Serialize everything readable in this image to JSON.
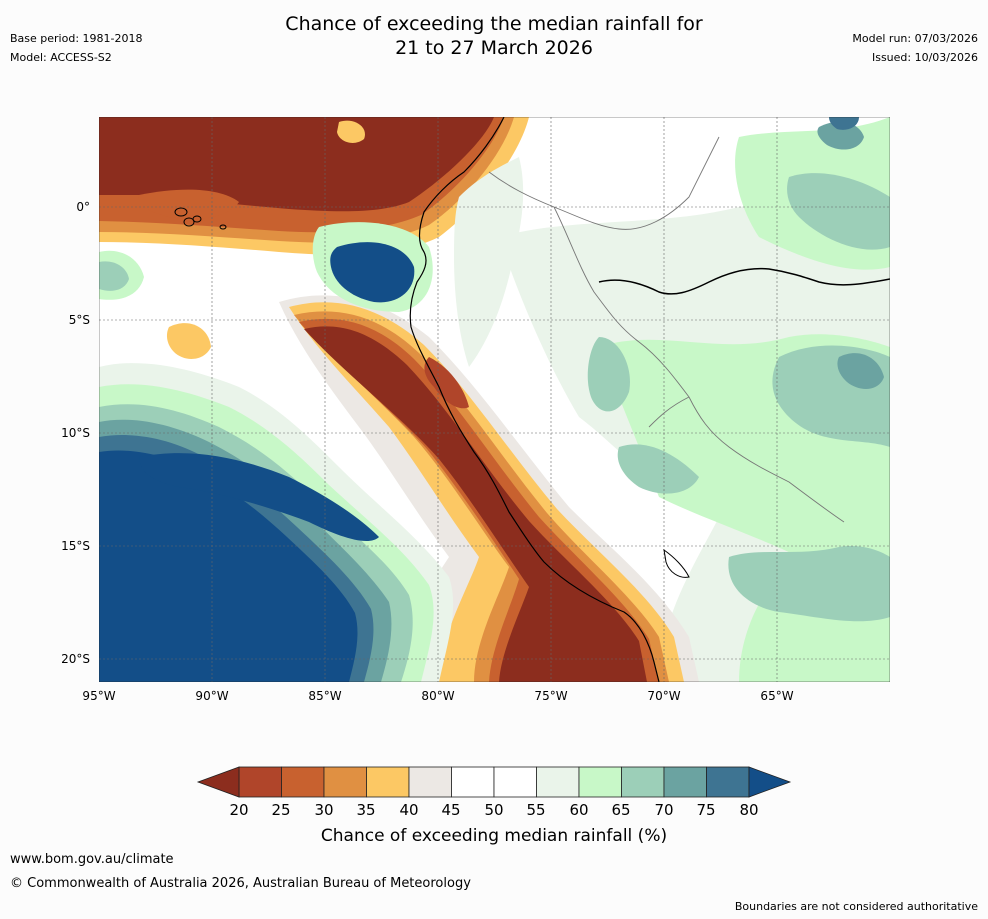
{
  "header": {
    "title_line1": "Chance of exceeding the median rainfall for",
    "title_line2": "21 to 27 March 2026",
    "base_period": "Base period: 1981-2018",
    "model": "Model: ACCESS-S2",
    "model_run": "Model run: 07/03/2026",
    "issued": "Issued: 10/03/2026"
  },
  "map": {
    "lat_labels": [
      "0°",
      "5°S",
      "10°S",
      "15°S",
      "20°S"
    ],
    "lon_labels": [
      "95°W",
      "90°W",
      "85°W",
      "80°W",
      "75°W",
      "70°W",
      "65°W"
    ],
    "colors": {
      "c20": "#8c2d1e",
      "c25": "#b0452a",
      "c30": "#c8612f",
      "c35": "#e09042",
      "c40": "#fcc864",
      "c45": "#ece8e4",
      "c50": "#ffffff",
      "c55": "#eaf4ea",
      "c60": "#c8f8c8",
      "c65": "#9ccfb8",
      "c70": "#6ba3a1",
      "c75": "#3e7492",
      "c80": "#134e88"
    }
  },
  "colorbar": {
    "ticks": [
      "20",
      "25",
      "30",
      "35",
      "40",
      "45",
      "50",
      "55",
      "60",
      "65",
      "70",
      "75",
      "80"
    ],
    "label": "Chance of exceeding median rainfall (%)",
    "colors": [
      "#b0452a",
      "#c8612f",
      "#e09042",
      "#fcc864",
      "#ece8e4",
      "#ffffff",
      "#ffffff",
      "#eaf4ea",
      "#c8f8c8",
      "#9ccfb8",
      "#6ba3a1",
      "#3e7492"
    ],
    "under_color": "#8c2d1e",
    "over_color": "#134e88"
  },
  "footer": {
    "website": "www.bom.gov.au/climate",
    "copyright": "© Commonwealth of Australia 2026, Australian Bureau of Meteorology",
    "disclaimer": "Boundaries are not considered authoritative"
  }
}
